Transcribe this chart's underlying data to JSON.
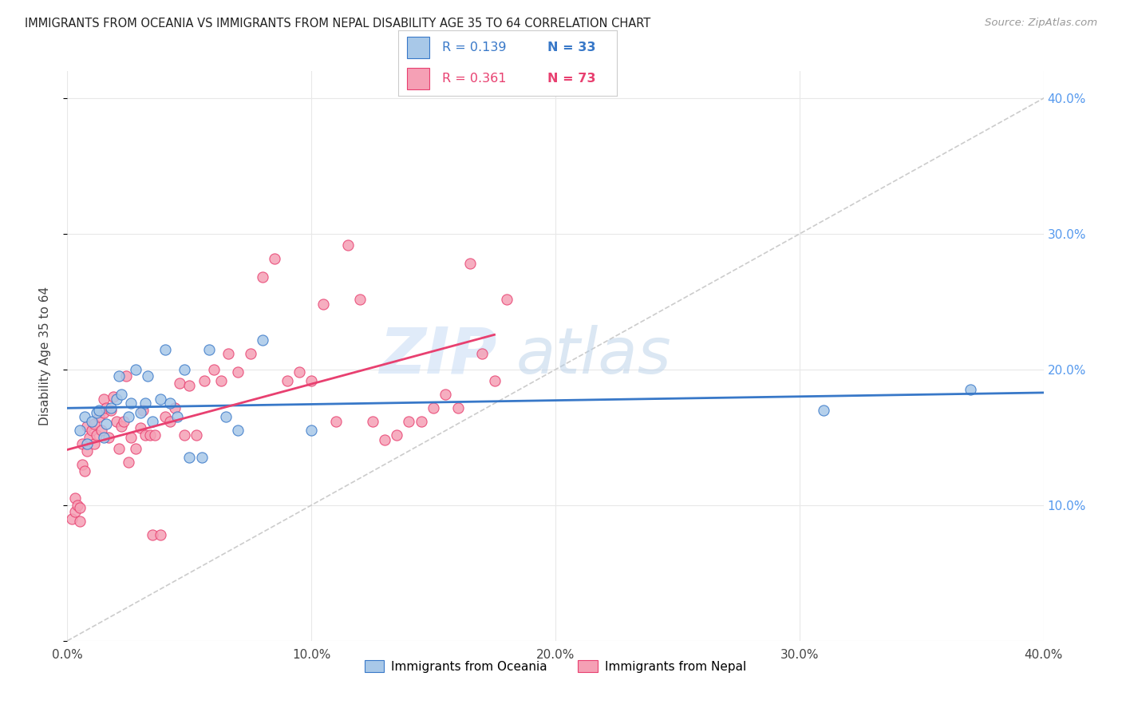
{
  "title": "IMMIGRANTS FROM OCEANIA VS IMMIGRANTS FROM NEPAL DISABILITY AGE 35 TO 64 CORRELATION CHART",
  "source": "Source: ZipAtlas.com",
  "ylabel": "Disability Age 35 to 64",
  "xlim": [
    0.0,
    0.4
  ],
  "ylim": [
    0.0,
    0.42
  ],
  "xtick_vals": [
    0.0,
    0.1,
    0.2,
    0.3,
    0.4
  ],
  "xtick_labels": [
    "0.0%",
    "10.0%",
    "20.0%",
    "30.0%",
    "40.0%"
  ],
  "ytick_vals_right": [
    0.1,
    0.2,
    0.3,
    0.4
  ],
  "ytick_labels_right": [
    "10.0%",
    "20.0%",
    "30.0%",
    "40.0%"
  ],
  "legend_r1": "R = 0.139",
  "legend_n1": "N = 33",
  "legend_r2": "R = 0.361",
  "legend_n2": "N = 73",
  "series1_color": "#a8c8e8",
  "series2_color": "#f5a0b5",
  "line1_color": "#3878c8",
  "line2_color": "#e84070",
  "diagonal_color": "#cccccc",
  "background_color": "#ffffff",
  "watermark_zip": "ZIP",
  "watermark_atlas": "atlas",
  "oceania_x": [
    0.005,
    0.007,
    0.008,
    0.01,
    0.012,
    0.013,
    0.015,
    0.016,
    0.018,
    0.02,
    0.021,
    0.022,
    0.025,
    0.026,
    0.028,
    0.03,
    0.032,
    0.033,
    0.035,
    0.038,
    0.04,
    0.042,
    0.045,
    0.048,
    0.05,
    0.055,
    0.058,
    0.065,
    0.07,
    0.08,
    0.1,
    0.31,
    0.37
  ],
  "oceania_y": [
    0.155,
    0.165,
    0.145,
    0.162,
    0.168,
    0.17,
    0.15,
    0.16,
    0.172,
    0.178,
    0.195,
    0.182,
    0.165,
    0.175,
    0.2,
    0.168,
    0.175,
    0.195,
    0.162,
    0.178,
    0.215,
    0.175,
    0.165,
    0.2,
    0.135,
    0.135,
    0.215,
    0.165,
    0.155,
    0.222,
    0.155,
    0.17,
    0.185
  ],
  "nepal_x": [
    0.002,
    0.003,
    0.003,
    0.004,
    0.005,
    0.005,
    0.006,
    0.006,
    0.007,
    0.008,
    0.008,
    0.009,
    0.01,
    0.011,
    0.011,
    0.012,
    0.013,
    0.014,
    0.015,
    0.015,
    0.016,
    0.017,
    0.018,
    0.019,
    0.02,
    0.021,
    0.022,
    0.023,
    0.024,
    0.025,
    0.026,
    0.028,
    0.03,
    0.031,
    0.032,
    0.034,
    0.035,
    0.036,
    0.038,
    0.04,
    0.042,
    0.044,
    0.046,
    0.048,
    0.05,
    0.053,
    0.056,
    0.06,
    0.063,
    0.066,
    0.07,
    0.075,
    0.08,
    0.085,
    0.09,
    0.095,
    0.1,
    0.105,
    0.11,
    0.115,
    0.12,
    0.125,
    0.13,
    0.135,
    0.14,
    0.145,
    0.15,
    0.155,
    0.16,
    0.165,
    0.17,
    0.175,
    0.18
  ],
  "nepal_y": [
    0.09,
    0.095,
    0.105,
    0.1,
    0.088,
    0.098,
    0.13,
    0.145,
    0.125,
    0.14,
    0.158,
    0.15,
    0.155,
    0.16,
    0.145,
    0.152,
    0.165,
    0.155,
    0.168,
    0.178,
    0.172,
    0.15,
    0.17,
    0.18,
    0.162,
    0.142,
    0.158,
    0.162,
    0.195,
    0.132,
    0.15,
    0.142,
    0.157,
    0.17,
    0.152,
    0.152,
    0.078,
    0.152,
    0.078,
    0.165,
    0.162,
    0.172,
    0.19,
    0.152,
    0.188,
    0.152,
    0.192,
    0.2,
    0.192,
    0.212,
    0.198,
    0.212,
    0.268,
    0.282,
    0.192,
    0.198,
    0.192,
    0.248,
    0.162,
    0.292,
    0.252,
    0.162,
    0.148,
    0.152,
    0.162,
    0.162,
    0.172,
    0.182,
    0.172,
    0.278,
    0.212,
    0.192,
    0.252
  ]
}
